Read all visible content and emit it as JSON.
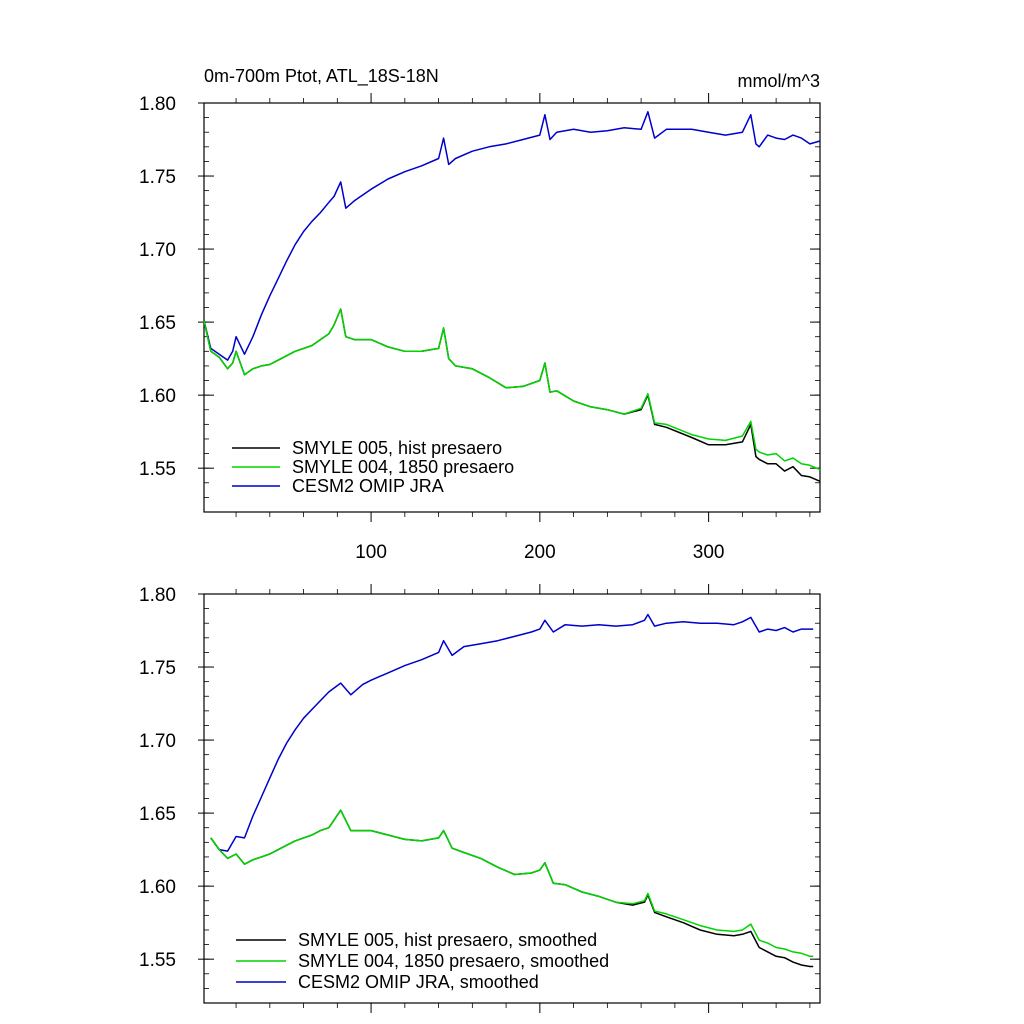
{
  "figure": {
    "title_left": "0m-700m Ptot, ATL_18S-18N",
    "title_right": "mmol/m^3"
  },
  "chart_data": [
    {
      "type": "line",
      "xlim": [
        1,
        366
      ],
      "ylim": [
        1.52,
        1.8
      ],
      "x_ticks": [
        100,
        200,
        300
      ],
      "x_tick_labels": [
        "100",
        "200",
        "300"
      ],
      "y_ticks": [
        1.55,
        1.6,
        1.65,
        1.7,
        1.75,
        1.8
      ],
      "y_tick_labels": [
        "1.55",
        "1.60",
        "1.65",
        "1.70",
        "1.75",
        "1.80"
      ],
      "legend_placement": "bottom-left",
      "grid": false,
      "series": [
        {
          "name": "SMYLE 005, hist presaero",
          "color": "#000000",
          "x": [
            1,
            5,
            10,
            15,
            18,
            20,
            25,
            30,
            35,
            40,
            45,
            50,
            55,
            60,
            65,
            70,
            75,
            78,
            82,
            85,
            90,
            100,
            110,
            120,
            130,
            140,
            143,
            146,
            150,
            160,
            170,
            180,
            190,
            200,
            203,
            206,
            210,
            220,
            230,
            240,
            250,
            260,
            264,
            268,
            275,
            290,
            300,
            310,
            320,
            325,
            328,
            330,
            335,
            340,
            345,
            350,
            355,
            360,
            366
          ],
          "values": [
            1.651,
            1.63,
            1.626,
            1.618,
            1.622,
            1.63,
            1.614,
            1.618,
            1.62,
            1.621,
            1.624,
            1.627,
            1.63,
            1.632,
            1.634,
            1.638,
            1.642,
            1.648,
            1.659,
            1.64,
            1.638,
            1.638,
            1.633,
            1.63,
            1.63,
            1.632,
            1.646,
            1.625,
            1.62,
            1.618,
            1.612,
            1.605,
            1.606,
            1.61,
            1.622,
            1.602,
            1.603,
            1.596,
            1.592,
            1.59,
            1.587,
            1.59,
            1.6,
            1.58,
            1.578,
            1.571,
            1.566,
            1.566,
            1.568,
            1.58,
            1.558,
            1.556,
            1.553,
            1.553,
            1.548,
            1.551,
            1.545,
            1.544,
            1.541
          ]
        },
        {
          "name": "SMYLE 004, 1850 presaero",
          "color": "#00d400",
          "x": [
            1,
            5,
            10,
            15,
            18,
            20,
            25,
            30,
            35,
            40,
            45,
            50,
            55,
            60,
            65,
            70,
            75,
            78,
            82,
            85,
            90,
            100,
            110,
            120,
            130,
            140,
            143,
            146,
            150,
            160,
            170,
            180,
            190,
            200,
            203,
            206,
            210,
            220,
            230,
            240,
            250,
            260,
            264,
            268,
            275,
            290,
            300,
            310,
            320,
            325,
            328,
            330,
            335,
            340,
            345,
            350,
            355,
            360,
            366
          ],
          "values": [
            1.651,
            1.63,
            1.626,
            1.618,
            1.622,
            1.63,
            1.614,
            1.618,
            1.62,
            1.621,
            1.624,
            1.627,
            1.63,
            1.632,
            1.634,
            1.638,
            1.642,
            1.648,
            1.659,
            1.64,
            1.638,
            1.638,
            1.633,
            1.63,
            1.63,
            1.632,
            1.646,
            1.625,
            1.62,
            1.618,
            1.612,
            1.605,
            1.606,
            1.61,
            1.622,
            1.602,
            1.603,
            1.596,
            1.592,
            1.59,
            1.587,
            1.591,
            1.601,
            1.581,
            1.58,
            1.573,
            1.57,
            1.569,
            1.572,
            1.582,
            1.563,
            1.561,
            1.559,
            1.56,
            1.555,
            1.557,
            1.553,
            1.552,
            1.549
          ]
        },
        {
          "name": "CESM2 OMIP JRA",
          "color": "#0000cc",
          "x": [
            1,
            5,
            10,
            15,
            18,
            20,
            25,
            30,
            35,
            40,
            45,
            50,
            55,
            60,
            65,
            70,
            75,
            78,
            82,
            85,
            90,
            100,
            110,
            120,
            130,
            140,
            143,
            146,
            150,
            160,
            170,
            180,
            190,
            200,
            203,
            206,
            210,
            220,
            230,
            240,
            250,
            260,
            264,
            268,
            275,
            290,
            300,
            310,
            320,
            325,
            328,
            330,
            335,
            340,
            345,
            350,
            355,
            360,
            366
          ],
          "values": [
            1.651,
            1.632,
            1.628,
            1.624,
            1.63,
            1.64,
            1.628,
            1.64,
            1.655,
            1.668,
            1.68,
            1.692,
            1.703,
            1.712,
            1.719,
            1.725,
            1.732,
            1.736,
            1.746,
            1.728,
            1.733,
            1.741,
            1.748,
            1.753,
            1.757,
            1.762,
            1.776,
            1.758,
            1.762,
            1.767,
            1.77,
            1.772,
            1.775,
            1.778,
            1.792,
            1.775,
            1.78,
            1.782,
            1.78,
            1.781,
            1.783,
            1.782,
            1.794,
            1.776,
            1.782,
            1.782,
            1.78,
            1.778,
            1.78,
            1.792,
            1.772,
            1.77,
            1.778,
            1.776,
            1.775,
            1.778,
            1.776,
            1.772,
            1.774
          ]
        }
      ]
    },
    {
      "type": "line",
      "xlim": [
        1,
        366
      ],
      "ylim": [
        1.52,
        1.8
      ],
      "x_ticks": [
        100,
        200,
        300
      ],
      "y_ticks": [
        1.55,
        1.6,
        1.65,
        1.7,
        1.75,
        1.8
      ],
      "y_tick_labels": [
        "1.55",
        "1.60",
        "1.65",
        "1.70",
        "1.75",
        "1.80"
      ],
      "legend_placement": "bottom-left",
      "grid": false,
      "series": [
        {
          "name": "SMYLE 005, hist presaero, smoothed",
          "color": "#000000",
          "x": [
            5,
            10,
            15,
            20,
            25,
            30,
            35,
            40,
            45,
            50,
            55,
            60,
            65,
            70,
            75,
            82,
            88,
            95,
            100,
            110,
            120,
            130,
            140,
            143,
            148,
            155,
            165,
            175,
            185,
            195,
            200,
            203,
            208,
            215,
            225,
            235,
            245,
            255,
            262,
            264,
            268,
            275,
            285,
            295,
            305,
            315,
            320,
            325,
            330,
            335,
            340,
            345,
            350,
            355,
            360,
            362
          ],
          "values": [
            1.633,
            1.625,
            1.619,
            1.622,
            1.615,
            1.618,
            1.62,
            1.622,
            1.625,
            1.628,
            1.631,
            1.633,
            1.635,
            1.638,
            1.64,
            1.652,
            1.638,
            1.638,
            1.638,
            1.635,
            1.632,
            1.631,
            1.633,
            1.638,
            1.626,
            1.623,
            1.619,
            1.613,
            1.608,
            1.609,
            1.611,
            1.616,
            1.602,
            1.601,
            1.596,
            1.593,
            1.589,
            1.587,
            1.589,
            1.594,
            1.582,
            1.579,
            1.575,
            1.57,
            1.567,
            1.566,
            1.567,
            1.569,
            1.558,
            1.555,
            1.552,
            1.551,
            1.548,
            1.546,
            1.545,
            1.545
          ]
        },
        {
          "name": "SMYLE 004, 1850 presaero, smoothed",
          "color": "#00d400",
          "x": [
            5,
            10,
            15,
            20,
            25,
            30,
            35,
            40,
            45,
            50,
            55,
            60,
            65,
            70,
            75,
            82,
            88,
            95,
            100,
            110,
            120,
            130,
            140,
            143,
            148,
            155,
            165,
            175,
            185,
            195,
            200,
            203,
            208,
            215,
            225,
            235,
            245,
            255,
            262,
            264,
            268,
            275,
            285,
            295,
            305,
            315,
            320,
            325,
            330,
            335,
            340,
            345,
            350,
            355,
            360,
            362
          ],
          "values": [
            1.633,
            1.625,
            1.619,
            1.622,
            1.615,
            1.618,
            1.62,
            1.622,
            1.625,
            1.628,
            1.631,
            1.633,
            1.635,
            1.638,
            1.64,
            1.652,
            1.638,
            1.638,
            1.638,
            1.635,
            1.632,
            1.631,
            1.633,
            1.638,
            1.626,
            1.623,
            1.619,
            1.613,
            1.608,
            1.609,
            1.611,
            1.616,
            1.602,
            1.601,
            1.596,
            1.593,
            1.589,
            1.588,
            1.59,
            1.595,
            1.583,
            1.581,
            1.577,
            1.573,
            1.57,
            1.569,
            1.57,
            1.574,
            1.563,
            1.561,
            1.558,
            1.557,
            1.555,
            1.554,
            1.552,
            1.552
          ]
        },
        {
          "name": "CESM2 OMIP JRA, smoothed",
          "color": "#0000cc",
          "x": [
            5,
            10,
            15,
            20,
            25,
            30,
            35,
            40,
            45,
            50,
            55,
            60,
            65,
            70,
            75,
            82,
            88,
            95,
            100,
            110,
            120,
            130,
            140,
            143,
            148,
            155,
            165,
            175,
            185,
            195,
            200,
            203,
            208,
            215,
            225,
            235,
            245,
            255,
            262,
            264,
            268,
            275,
            285,
            295,
            305,
            315,
            320,
            325,
            330,
            335,
            340,
            345,
            350,
            355,
            360,
            362
          ],
          "values": [
            1.633,
            1.625,
            1.624,
            1.634,
            1.633,
            1.648,
            1.661,
            1.674,
            1.687,
            1.698,
            1.707,
            1.715,
            1.721,
            1.727,
            1.733,
            1.739,
            1.731,
            1.738,
            1.741,
            1.746,
            1.751,
            1.755,
            1.76,
            1.768,
            1.758,
            1.764,
            1.766,
            1.768,
            1.771,
            1.774,
            1.776,
            1.782,
            1.774,
            1.779,
            1.778,
            1.779,
            1.778,
            1.779,
            1.782,
            1.786,
            1.778,
            1.78,
            1.781,
            1.78,
            1.78,
            1.779,
            1.781,
            1.784,
            1.774,
            1.776,
            1.775,
            1.777,
            1.774,
            1.776,
            1.776,
            1.776
          ]
        }
      ]
    }
  ]
}
